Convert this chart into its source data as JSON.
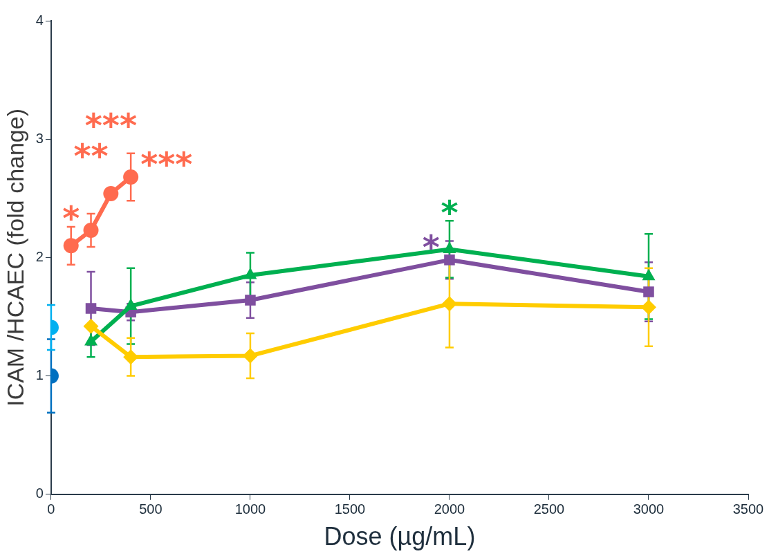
{
  "chart_data": {
    "type": "line",
    "xlabel": "Dose (µg/mL)",
    "ylabel": "ICAM /HCAEC (fold change)",
    "xlim": [
      0,
      3500
    ],
    "xticks": [
      0,
      500,
      1000,
      1500,
      2000,
      2500,
      3000,
      3500
    ],
    "ylim": [
      0,
      4
    ],
    "yticks": [
      0,
      1,
      2,
      3,
      4
    ],
    "grid": false,
    "legend": false,
    "series": [
      {
        "color": "#0070c0",
        "marker": "circle",
        "x": [
          0
        ],
        "values": [
          1.0
        ],
        "errors": [
          0.31
        ]
      },
      {
        "color": "#00b0f0",
        "marker": "circle",
        "x": [
          0
        ],
        "values": [
          1.41
        ],
        "errors": [
          0.19
        ]
      },
      {
        "color": "#ff6b4f",
        "marker": "circle",
        "x": [
          100,
          200,
          300,
          400
        ],
        "values": [
          2.1,
          2.23,
          2.54,
          2.68
        ],
        "errors": [
          0.16,
          0.14,
          null,
          0.2
        ]
      },
      {
        "color": "#7f4f9f",
        "marker": "square",
        "x": [
          200,
          400,
          1000,
          2000,
          3000
        ],
        "values": [
          1.57,
          1.54,
          1.64,
          1.98,
          1.71
        ],
        "errors": [
          0.31,
          0.07,
          0.15,
          0.16,
          0.25
        ]
      },
      {
        "color": "#00b050",
        "marker": "triangle",
        "x": [
          200,
          400,
          1000,
          2000,
          3000
        ],
        "values": [
          1.29,
          1.59,
          1.85,
          2.07,
          1.84
        ],
        "errors": [
          0.13,
          0.32,
          0.19,
          0.24,
          0.36
        ]
      },
      {
        "color": "#ffcc00",
        "marker": "diamond",
        "x": [
          200,
          400,
          1000,
          2000,
          3000
        ],
        "values": [
          1.42,
          1.16,
          1.17,
          1.61,
          1.58
        ],
        "errors": [
          null,
          0.16,
          0.19,
          0.37,
          0.33
        ]
      }
    ],
    "annotations": [
      {
        "text": "*",
        "x": 100,
        "y": 2.1
      },
      {
        "text": "**",
        "x": 200,
        "y": 2.23
      },
      {
        "text": "***",
        "x": 300,
        "y": 2.54
      },
      {
        "text": "***",
        "x": 400,
        "y": 2.68
      },
      {
        "text": "*",
        "x": 2000,
        "y": 2.07
      },
      {
        "text": "*",
        "x": 2000,
        "y": 1.98
      }
    ]
  }
}
